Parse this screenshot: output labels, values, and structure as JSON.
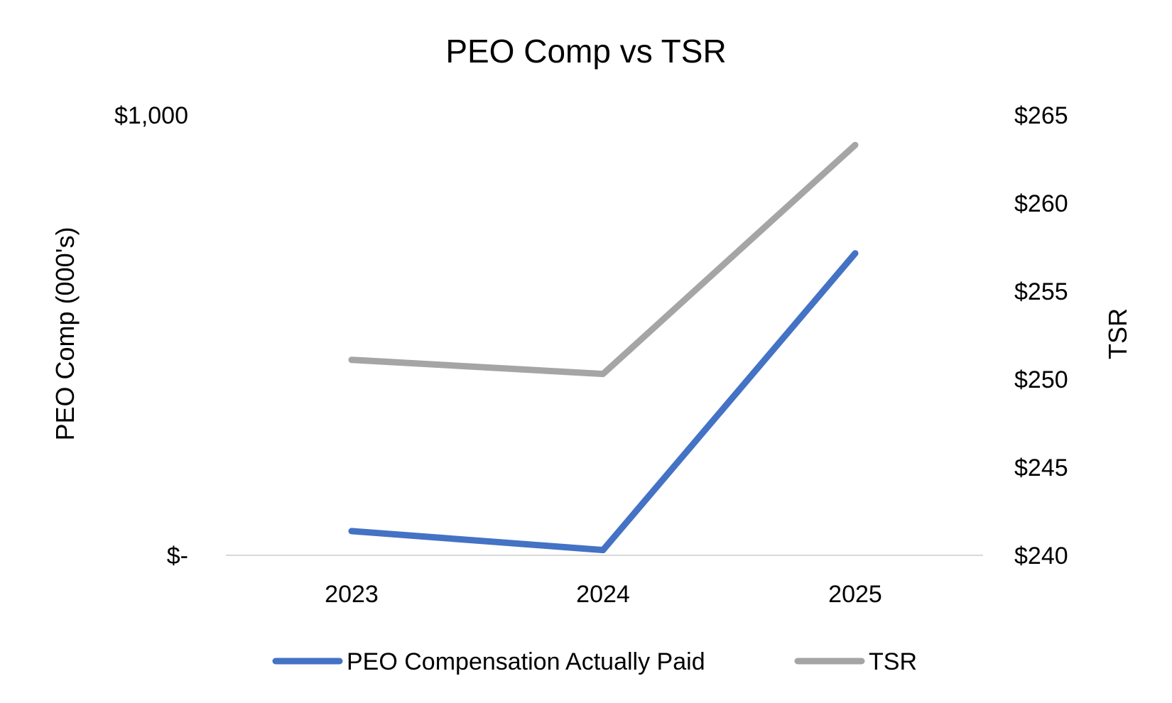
{
  "chart_data": {
    "type": "line",
    "title": "PEO Comp vs TSR",
    "categories": [
      "2023",
      "2024",
      "2025"
    ],
    "y_left": {
      "label": "PEO Comp (000's)",
      "ylim": [
        0,
        1000
      ],
      "ticks": [
        {
          "value": 0,
          "label": "$-"
        },
        {
          "value": 1000,
          "label": "$1,000"
        }
      ]
    },
    "y_right": {
      "label": "TSR",
      "ylim": [
        240,
        265
      ],
      "ticks": [
        {
          "value": 240,
          "label": "$240"
        },
        {
          "value": 245,
          "label": "$245"
        },
        {
          "value": 250,
          "label": "$250"
        },
        {
          "value": 255,
          "label": "$255"
        },
        {
          "value": 260,
          "label": "$260"
        },
        {
          "value": 265,
          "label": "$265"
        }
      ]
    },
    "series": [
      {
        "name": "PEO Compensation Actually Paid",
        "axis": "left",
        "color": "#4472C4",
        "values": [
          55,
          12,
          686
        ]
      },
      {
        "name": "TSR",
        "axis": "right",
        "color": "#A5A5A5",
        "values": [
          251.1,
          250.3,
          263.3
        ]
      }
    ],
    "grid": false,
    "legend_position": "bottom"
  }
}
